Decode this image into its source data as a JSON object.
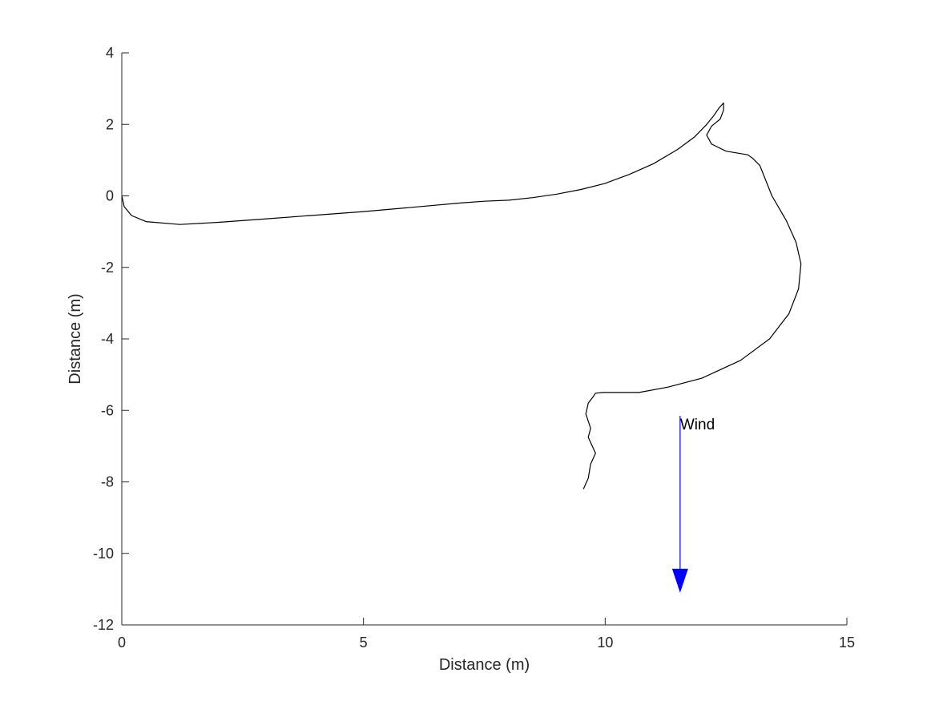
{
  "chart_data": {
    "type": "line",
    "title": "",
    "xlabel": "Distance (m)",
    "ylabel": "Distance (m)",
    "xlim": [
      0,
      15
    ],
    "ylim": [
      -12,
      4
    ],
    "grid": false,
    "x_ticks": [
      0,
      5,
      10,
      15
    ],
    "y_ticks": [
      4,
      2,
      0,
      -2,
      -4,
      -6,
      -8,
      -10,
      -12
    ],
    "x_tick_labels": [
      "0",
      "5",
      "10",
      "15"
    ],
    "y_tick_labels": [
      "4",
      "2",
      "0",
      "-2",
      "-4",
      "-6",
      "-8",
      "-10",
      "-12"
    ],
    "colors": {
      "path": "#000000",
      "wind_arrow": "#0000ff",
      "axes": "#262626"
    },
    "series": [
      {
        "x": [
          0.0,
          0.05,
          0.2,
          0.5,
          1.2,
          2.0,
          3.0,
          4.0,
          5.0,
          6.0,
          7.0,
          7.5,
          8.0,
          8.5,
          9.0,
          9.5,
          10.0,
          10.5,
          11.0,
          11.5,
          11.85,
          12.1,
          12.25,
          12.35,
          12.45,
          12.45,
          12.38,
          12.2,
          12.1,
          12.2,
          12.5,
          12.95,
          13.05,
          13.2,
          13.45,
          13.75,
          13.95,
          14.05,
          14.0,
          13.8,
          13.4,
          12.8,
          12.0,
          11.3,
          10.7,
          10.2,
          9.95,
          9.8,
          9.75,
          9.65,
          9.6,
          9.7,
          9.65,
          9.8,
          9.7,
          9.65,
          9.55
        ],
        "y": [
          0.0,
          -0.3,
          -0.55,
          -0.72,
          -0.8,
          -0.74,
          -0.64,
          -0.54,
          -0.44,
          -0.32,
          -0.2,
          -0.15,
          -0.12,
          -0.05,
          0.05,
          0.18,
          0.35,
          0.6,
          0.9,
          1.3,
          1.65,
          2.0,
          2.25,
          2.45,
          2.6,
          2.4,
          2.15,
          1.95,
          1.7,
          1.45,
          1.25,
          1.15,
          1.05,
          0.85,
          0.0,
          -0.7,
          -1.3,
          -1.9,
          -2.6,
          -3.3,
          -4.0,
          -4.6,
          -5.1,
          -5.35,
          -5.5,
          -5.5,
          -5.5,
          -5.52,
          -5.62,
          -5.8,
          -6.1,
          -6.5,
          -6.75,
          -7.2,
          -7.5,
          -7.9,
          -8.2
        ]
      }
    ],
    "annotations": [
      {
        "text": "Wind",
        "x": 11.65,
        "y": -6.35
      }
    ],
    "arrows": [
      {
        "label": "Wind",
        "x_start": 11.55,
        "y_start": -6.15,
        "x_end": 11.55,
        "y_end": -11.1,
        "color": "#0000ff"
      }
    ]
  }
}
